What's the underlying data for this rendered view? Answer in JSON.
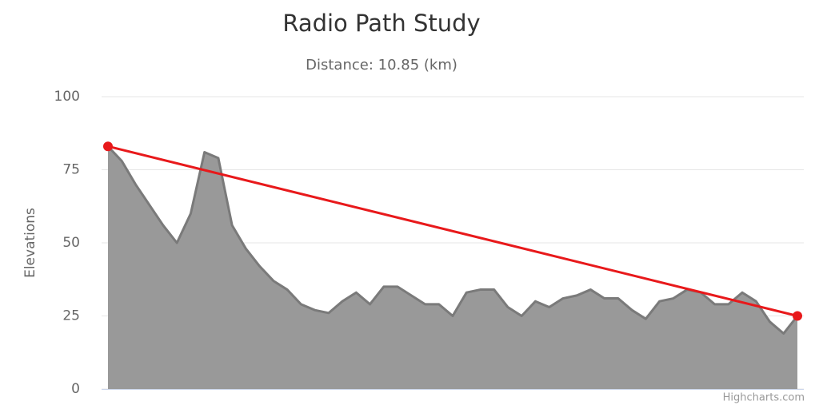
{
  "chart_data": {
    "type": "area",
    "title": "Radio Path Study",
    "subtitle": "Distance: 10.85 (km)",
    "y_axis_label": "Elevations",
    "credits": "Highcharts.com",
    "xlim": [
      0,
      50
    ],
    "ylim": [
      0,
      100
    ],
    "yticks": [
      0,
      25,
      50,
      75,
      100
    ],
    "grid": true,
    "series": [
      {
        "type": "area",
        "color": "#999999",
        "line_color": "#7a7a7a",
        "x": [
          0,
          1,
          2,
          3,
          4,
          5,
          6,
          7,
          8,
          9,
          10,
          11,
          12,
          13,
          14,
          15,
          16,
          17,
          18,
          19,
          20,
          21,
          22,
          23,
          24,
          25,
          26,
          27,
          28,
          29,
          30,
          31,
          32,
          33,
          34,
          35,
          36,
          37,
          38,
          39,
          40,
          41,
          42,
          43,
          44,
          45,
          46,
          47,
          48,
          49,
          50
        ],
        "values": [
          83,
          78,
          70,
          63,
          56,
          50,
          60,
          81,
          79,
          56,
          48,
          42,
          37,
          34,
          29,
          27,
          26,
          30,
          33,
          29,
          35,
          35,
          32,
          29,
          29,
          25,
          33,
          34,
          34,
          28,
          25,
          30,
          28,
          31,
          32,
          34,
          31,
          31,
          27,
          24,
          30,
          31,
          34,
          33,
          29,
          29,
          33,
          30,
          23,
          19,
          25
        ]
      },
      {
        "type": "line",
        "color": "#e8191b",
        "x": [
          0,
          50
        ],
        "values": [
          83,
          25
        ]
      }
    ]
  }
}
